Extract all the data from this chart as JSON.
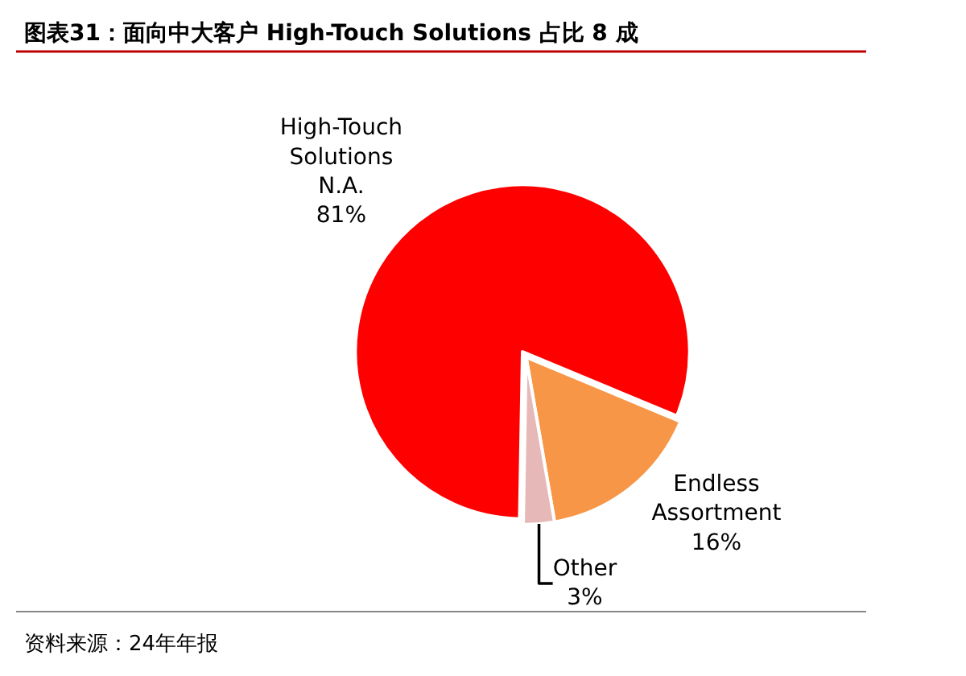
{
  "chart_data": {
    "type": "pie",
    "title": "图表31：面向中大客户 High-Touch Solutions 占比 8 成",
    "categories": [
      "High-Touch Solutions N.A.",
      "Endless Assortment",
      "Other"
    ],
    "values": [
      81,
      16,
      3
    ],
    "value_labels": [
      "81%",
      "16%",
      "3%"
    ],
    "colors": [
      "#ff0000",
      "#f79646",
      "#e6b9b8"
    ],
    "legend": false,
    "annotations": [
      "资料来源：24年年报"
    ]
  }
}
